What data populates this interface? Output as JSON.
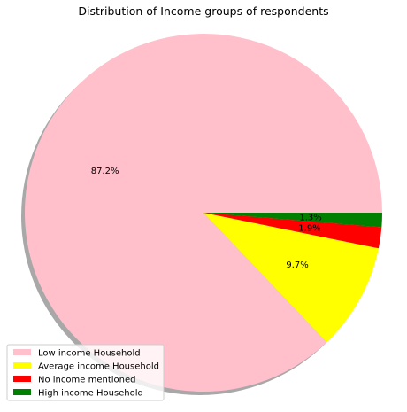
{
  "chart_data": {
    "type": "pie",
    "title": "Distribution of Income groups of respondents",
    "categories": [
      "Low income Household",
      "Average income Household",
      "No income mentioned",
      "High income Household"
    ],
    "values": [
      87.2,
      9.7,
      1.9,
      1.3
    ],
    "labels": [
      "87.2%",
      "9.7%",
      "1.9%",
      "1.3%"
    ],
    "colors": [
      "#ffc0cb",
      "#ffff00",
      "#ff0000",
      "#008000"
    ],
    "shadow": true,
    "start_angle": 0,
    "direction": "counterclockwise",
    "legend": {
      "placement": "lower-left",
      "entries": [
        "Low income Household",
        "Average income Household",
        "No income mentioned",
        "High income Household"
      ]
    }
  }
}
